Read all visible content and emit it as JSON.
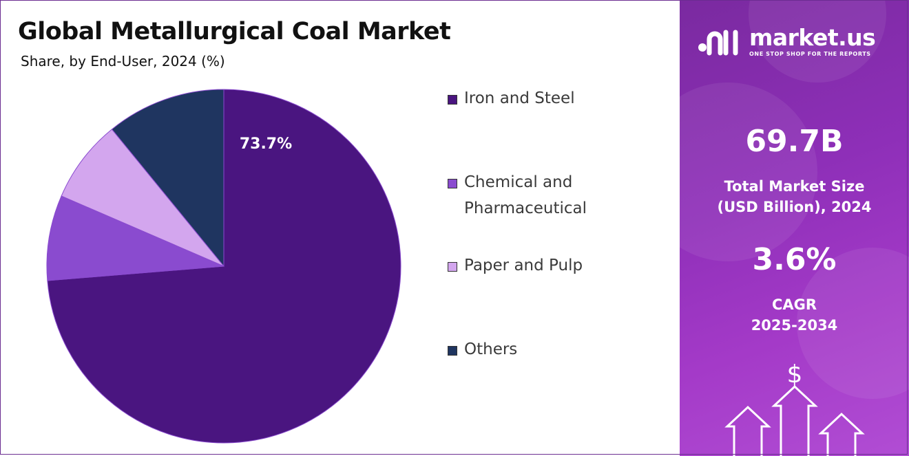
{
  "header": {
    "title": "Global Metallurgical Coal Market",
    "subtitle": "Share, by End-User, 2024 (%)"
  },
  "chart_data": {
    "type": "pie",
    "title": "Global Metallurgical Coal Market",
    "subtitle": "Share, by End-User, 2024 (%)",
    "start_angle_deg": 0,
    "direction": "clockwise",
    "slices": [
      {
        "label": "Iron and Steel",
        "value": 73.7,
        "color": "#4a1580",
        "data_label": "73.7%"
      },
      {
        "label": "Chemical and Pharmaceutical",
        "value": 7.8,
        "color": "#8a4bcf",
        "data_label": ""
      },
      {
        "label": "Paper and Pulp",
        "value": 7.6,
        "color": "#d3a6ee",
        "data_label": ""
      },
      {
        "label": "Others",
        "value": 10.9,
        "color": "#1f3560",
        "data_label": ""
      }
    ],
    "legend_position": "right"
  },
  "legend": {
    "items": [
      {
        "label": "Iron and Steel",
        "color": "#4a1580"
      },
      {
        "label": "Chemical and Pharmaceutical",
        "color": "#8a4bcf"
      },
      {
        "label": "Paper and Pulp",
        "color": "#d3a6ee"
      },
      {
        "label": "Others",
        "color": "#1f3560"
      }
    ]
  },
  "brand": {
    "name": "market.us",
    "tagline": "ONE STOP SHOP FOR THE REPORTS"
  },
  "stats": {
    "market_size_value": "69.7B",
    "market_size_label_line1": "Total Market Size",
    "market_size_label_line2": "(USD Billion), 2024",
    "cagr_value": "3.6%",
    "cagr_label_line1": "CAGR",
    "cagr_label_line2": "2025-2034"
  },
  "decor": {
    "dollar_symbol": "$"
  }
}
